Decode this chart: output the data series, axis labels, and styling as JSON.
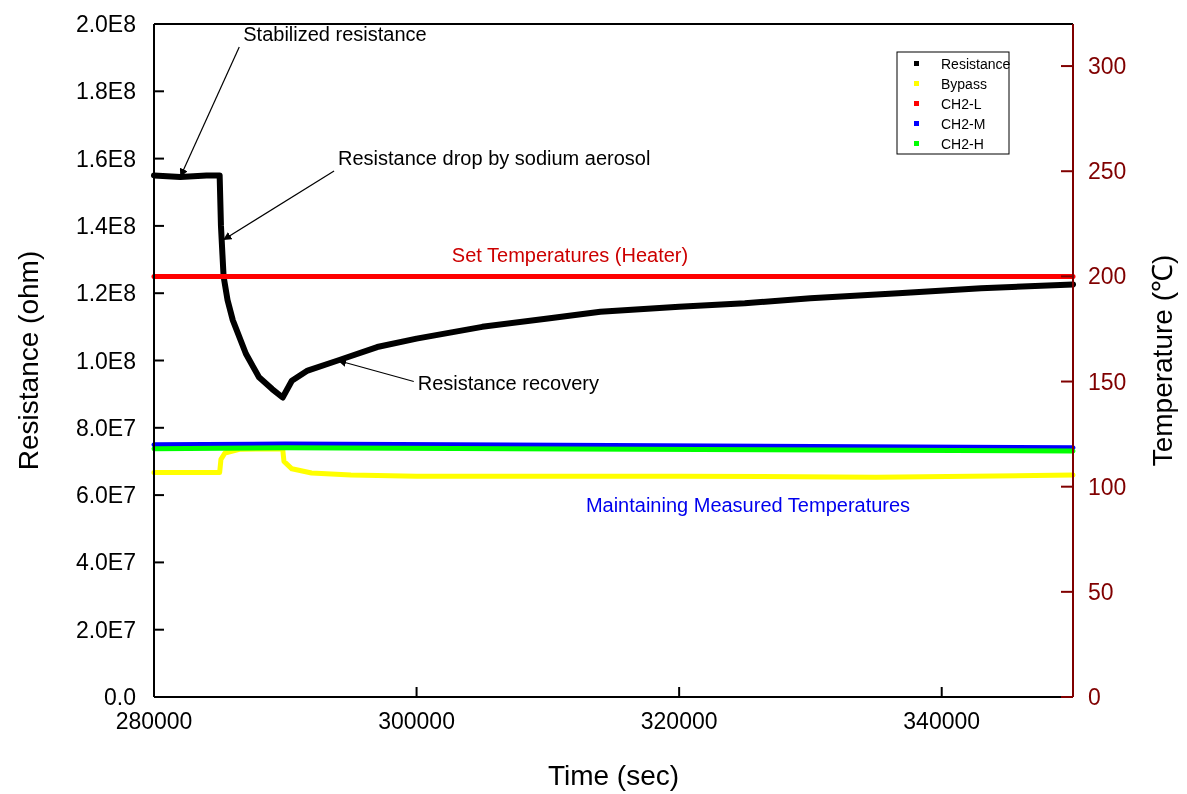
{
  "chart_data": {
    "type": "line",
    "xlabel": "Time (sec)",
    "ylabel": "Resistance (ohm)",
    "y2label": "Temperature (℃)",
    "xlim": [
      280000,
      350000
    ],
    "xticks": [
      280000,
      300000,
      320000,
      340000
    ],
    "ylim": [
      0,
      200000000
    ],
    "yticks": [
      {
        "value": 0,
        "label": "0.0"
      },
      {
        "value": 20000000,
        "label": "2.0E7"
      },
      {
        "value": 40000000,
        "label": "4.0E7"
      },
      {
        "value": 60000000,
        "label": "6.0E7"
      },
      {
        "value": 80000000,
        "label": "8.0E7"
      },
      {
        "value": 100000000,
        "label": "1.0E8"
      },
      {
        "value": 120000000,
        "label": "1.2E8"
      },
      {
        "value": 140000000,
        "label": "1.4E8"
      },
      {
        "value": 160000000,
        "label": "1.6E8"
      },
      {
        "value": 180000000,
        "label": "1.8E8"
      },
      {
        "value": 200000000,
        "label": "2.0E8"
      }
    ],
    "y2lim": [
      0,
      320
    ],
    "y2ticks": [
      0,
      50,
      100,
      150,
      200,
      250,
      300
    ],
    "legend": "top right",
    "grid": false,
    "series": [
      {
        "name": "Resistance",
        "color": "#000000",
        "x": [
          280000,
          282000,
          284000,
          285000,
          285100,
          285300,
          285600,
          286000,
          287000,
          288000,
          289000,
          289800,
          290500,
          291700,
          294000,
          297000,
          300000,
          305000,
          310000,
          314000,
          320000,
          325000,
          330000,
          336700,
          343000,
          350000
        ],
        "values": [
          155000000,
          154500000,
          155000000,
          155000000,
          140000000,
          125000000,
          118000000,
          112000000,
          102000000,
          95000000,
          91500000,
          89000000,
          94000000,
          97000000,
          100000000,
          104000000,
          106500000,
          110000000,
          112500000,
          114500000,
          116000000,
          117000000,
          118500000,
          120000000,
          121500000,
          122600000
        ]
      },
      {
        "name": "Bypass",
        "color": "#ffff00",
        "axis": "y2",
        "x": [
          280000,
          285000,
          285100,
          285400,
          286500,
          289800,
          289900,
          290500,
          292000,
          295000,
          300000,
          320000,
          335000,
          350000
        ],
        "values": [
          106.7,
          106.7,
          113,
          116,
          117.8,
          118,
          112,
          108.5,
          106.5,
          105.5,
          105,
          105,
          104.5,
          105.5
        ]
      },
      {
        "name": "CH2-L",
        "color": "#ff0000",
        "axis": "y2",
        "x": [
          280000,
          350000
        ],
        "values": [
          200,
          200
        ]
      },
      {
        "name": "CH2-M",
        "color": "#0000ff",
        "axis": "y2",
        "x": [
          280000,
          290000,
          350000
        ],
        "values": [
          120,
          120.3,
          118.5
        ]
      },
      {
        "name": "CH2-H",
        "color": "#00ff00",
        "axis": "y2",
        "x": [
          280000,
          290000,
          350000
        ],
        "values": [
          118,
          118.5,
          117
        ]
      }
    ],
    "annotations": [
      {
        "text": "Stabilized resistance",
        "x": 282000,
        "y": 154500000
      },
      {
        "text": "Resistance drop by sodium aerosol",
        "x": 285260,
        "y": 135800000
      },
      {
        "text": "Resistance recovery",
        "x": 294000,
        "y": 100000000
      },
      "Set Temperatures (Heater)",
      "Maintaining Measured Temperatures"
    ]
  }
}
